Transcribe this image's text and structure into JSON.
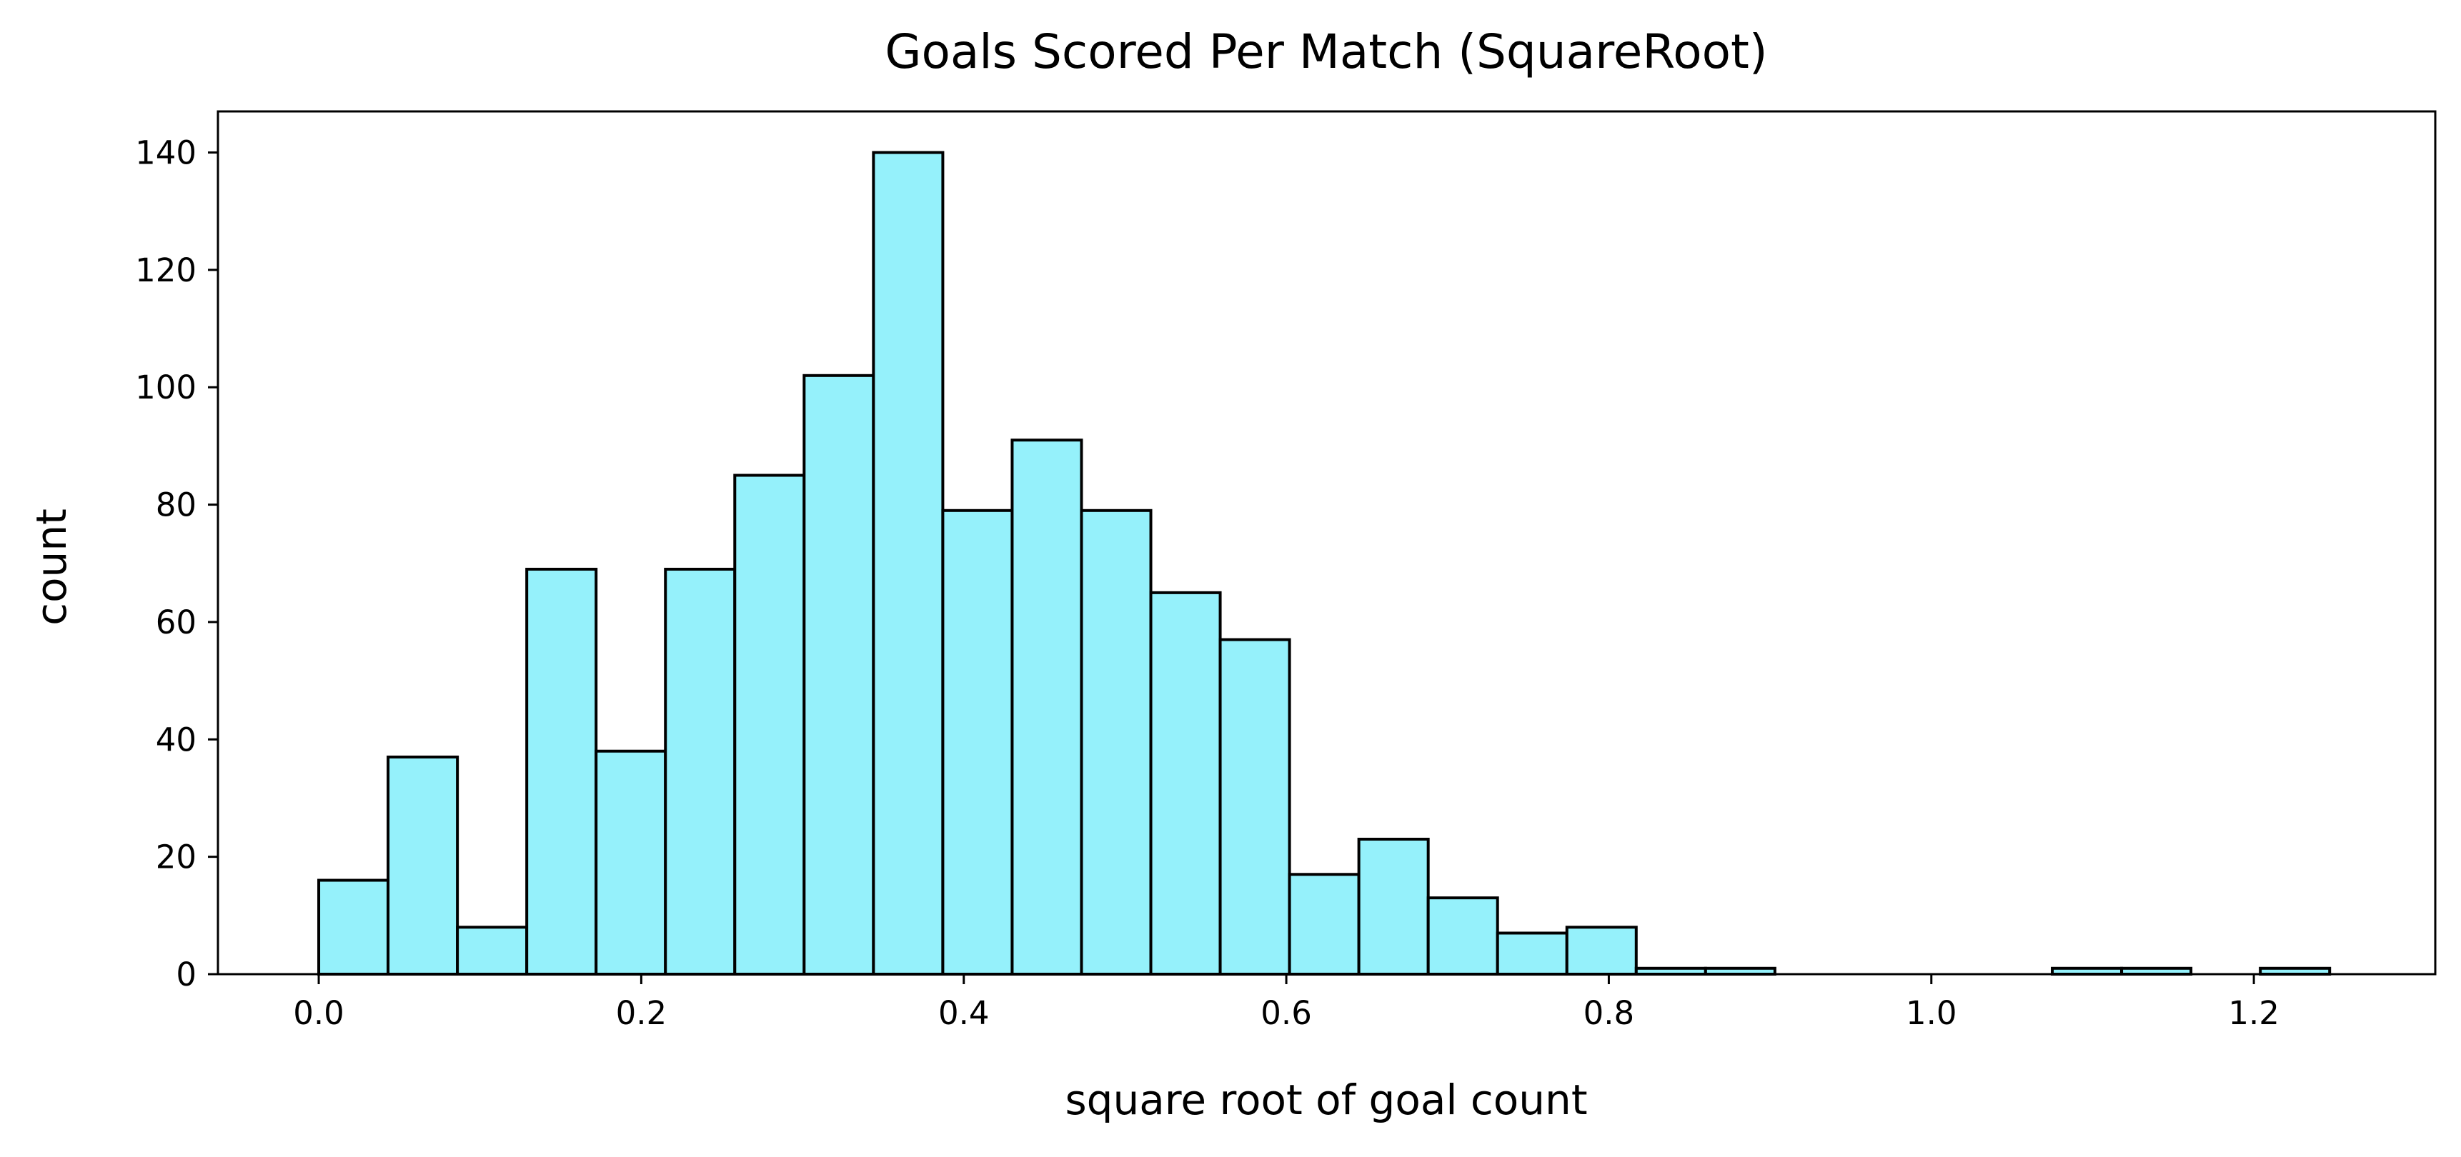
{
  "chart_data": {
    "type": "bar",
    "title": "Goals Scored Per Match (SquareRoot)",
    "xlabel": "square root of goal count",
    "ylabel": "count",
    "xlim": [
      -0.0625,
      1.3125
    ],
    "ylim": [
      0,
      147
    ],
    "bin_width": 0.043,
    "bins": [
      {
        "x0": 0.0,
        "x1": 0.043,
        "count": 16
      },
      {
        "x0": 0.043,
        "x1": 0.086,
        "count": 37
      },
      {
        "x0": 0.086,
        "x1": 0.129,
        "count": 8
      },
      {
        "x0": 0.129,
        "x1": 0.172,
        "count": 69
      },
      {
        "x0": 0.172,
        "x1": 0.215,
        "count": 38
      },
      {
        "x0": 0.215,
        "x1": 0.258,
        "count": 69
      },
      {
        "x0": 0.258,
        "x1": 0.301,
        "count": 85
      },
      {
        "x0": 0.301,
        "x1": 0.344,
        "count": 102
      },
      {
        "x0": 0.344,
        "x1": 0.387,
        "count": 140
      },
      {
        "x0": 0.387,
        "x1": 0.43,
        "count": 79
      },
      {
        "x0": 0.43,
        "x1": 0.473,
        "count": 91
      },
      {
        "x0": 0.473,
        "x1": 0.516,
        "count": 79
      },
      {
        "x0": 0.516,
        "x1": 0.559,
        "count": 65
      },
      {
        "x0": 0.559,
        "x1": 0.602,
        "count": 57
      },
      {
        "x0": 0.602,
        "x1": 0.645,
        "count": 17
      },
      {
        "x0": 0.645,
        "x1": 0.688,
        "count": 23
      },
      {
        "x0": 0.688,
        "x1": 0.731,
        "count": 13
      },
      {
        "x0": 0.731,
        "x1": 0.774,
        "count": 7
      },
      {
        "x0": 0.774,
        "x1": 0.817,
        "count": 8
      },
      {
        "x0": 0.817,
        "x1": 0.86,
        "count": 1
      },
      {
        "x0": 0.86,
        "x1": 0.903,
        "count": 1
      },
      {
        "x0": 0.903,
        "x1": 0.946,
        "count": 0
      },
      {
        "x0": 0.946,
        "x1": 0.989,
        "count": 0
      },
      {
        "x0": 0.989,
        "x1": 1.032,
        "count": 0
      },
      {
        "x0": 1.032,
        "x1": 1.075,
        "count": 0
      },
      {
        "x0": 1.075,
        "x1": 1.118,
        "count": 1
      },
      {
        "x0": 1.118,
        "x1": 1.161,
        "count": 1
      },
      {
        "x0": 1.161,
        "x1": 1.204,
        "count": 0
      },
      {
        "x0": 1.204,
        "x1": 1.247,
        "count": 1
      }
    ],
    "xticks": [
      0.0,
      0.2,
      0.4,
      0.6,
      0.8,
      1.0,
      1.2
    ],
    "xtick_labels": [
      "0.0",
      "0.2",
      "0.4",
      "0.6",
      "0.8",
      "1.0",
      "1.2"
    ],
    "yticks": [
      0,
      20,
      40,
      60,
      80,
      100,
      120,
      140
    ],
    "ytick_labels": [
      "0",
      "20",
      "40",
      "60",
      "80",
      "100",
      "120",
      "140"
    ],
    "grid": false,
    "legend": "none",
    "colors": {
      "bar_fill": "#95f1fb",
      "bar_edge": "#000000",
      "axes": "#000000",
      "background": "#ffffff"
    }
  }
}
